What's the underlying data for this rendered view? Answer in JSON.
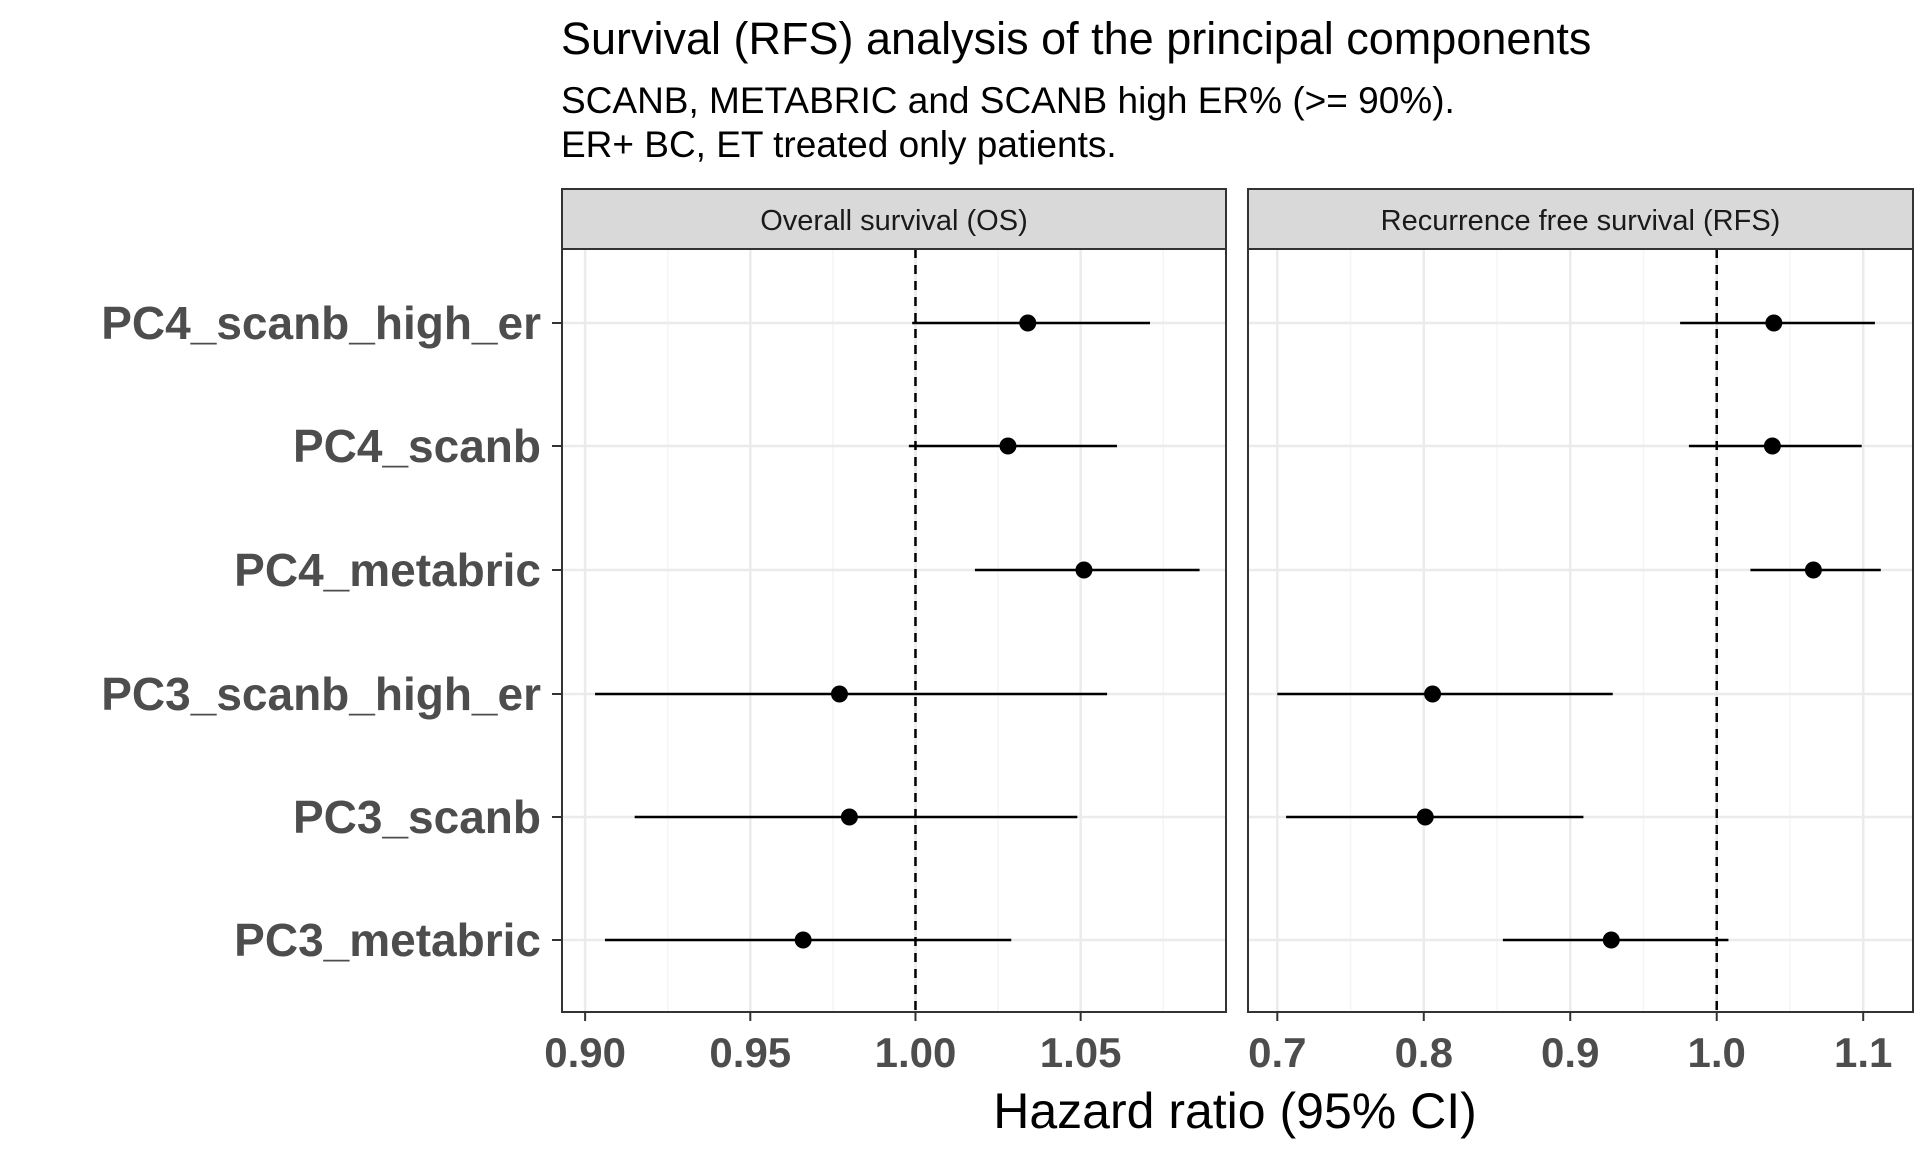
{
  "chart_data": {
    "type": "forest",
    "title": "Survival (RFS) analysis of the principal components",
    "subtitle_lines": [
      "SCANB, METABRIC and SCANB high ER% (>= 90%).",
      "ER+ BC, ET treated only patients."
    ],
    "xlabel": "Hazard ratio (95% CI)",
    "reference_line": 1.0,
    "categories": [
      "PC4_scanb_high_er",
      "PC4_scanb",
      "PC4_metabric",
      "PC3_scanb_high_er",
      "PC3_scanb",
      "PC3_metabric"
    ],
    "panels": [
      {
        "name": "Overall survival (OS)",
        "xlim": [
          0.893,
          1.094
        ],
        "ticks": [
          0.9,
          0.95,
          1.0,
          1.05
        ],
        "tick_labels": [
          "0.90",
          "0.95",
          "1.00",
          "1.05"
        ],
        "points": [
          {
            "category": "PC4_scanb_high_er",
            "hr": 1.034,
            "lower": 0.999,
            "upper": 1.071
          },
          {
            "category": "PC4_scanb",
            "hr": 1.028,
            "lower": 0.998,
            "upper": 1.061
          },
          {
            "category": "PC4_metabric",
            "hr": 1.051,
            "lower": 1.018,
            "upper": 1.086
          },
          {
            "category": "PC3_scanb_high_er",
            "hr": 0.977,
            "lower": 0.903,
            "upper": 1.058
          },
          {
            "category": "PC3_scanb",
            "hr": 0.98,
            "lower": 0.915,
            "upper": 1.049
          },
          {
            "category": "PC3_metabric",
            "hr": 0.966,
            "lower": 0.906,
            "upper": 1.029
          }
        ]
      },
      {
        "name": "Recurrence free survival (RFS)",
        "xlim": [
          0.68,
          1.134
        ],
        "ticks": [
          0.7,
          0.8,
          0.9,
          1.0,
          1.1
        ],
        "tick_labels": [
          "0.7",
          "0.8",
          "0.9",
          "1.0",
          "1.1"
        ],
        "points": [
          {
            "category": "PC4_scanb_high_er",
            "hr": 1.039,
            "lower": 0.975,
            "upper": 1.108
          },
          {
            "category": "PC4_scanb",
            "hr": 1.038,
            "lower": 0.981,
            "upper": 1.099
          },
          {
            "category": "PC4_metabric",
            "hr": 1.066,
            "lower": 1.023,
            "upper": 1.112
          },
          {
            "category": "PC3_scanb_high_er",
            "hr": 0.806,
            "lower": 0.7,
            "upper": 0.929
          },
          {
            "category": "PC3_scanb",
            "hr": 0.801,
            "lower": 0.706,
            "upper": 0.909
          },
          {
            "category": "PC3_metabric",
            "hr": 0.928,
            "lower": 0.854,
            "upper": 1.008
          }
        ]
      }
    ],
    "grid": true,
    "colors": {
      "point": "#000000",
      "strip_fill": "#d9d9d9",
      "grid_major": "#ebebeb",
      "grid_minor": "#f5f5f5",
      "panel_border": "#333333"
    }
  }
}
